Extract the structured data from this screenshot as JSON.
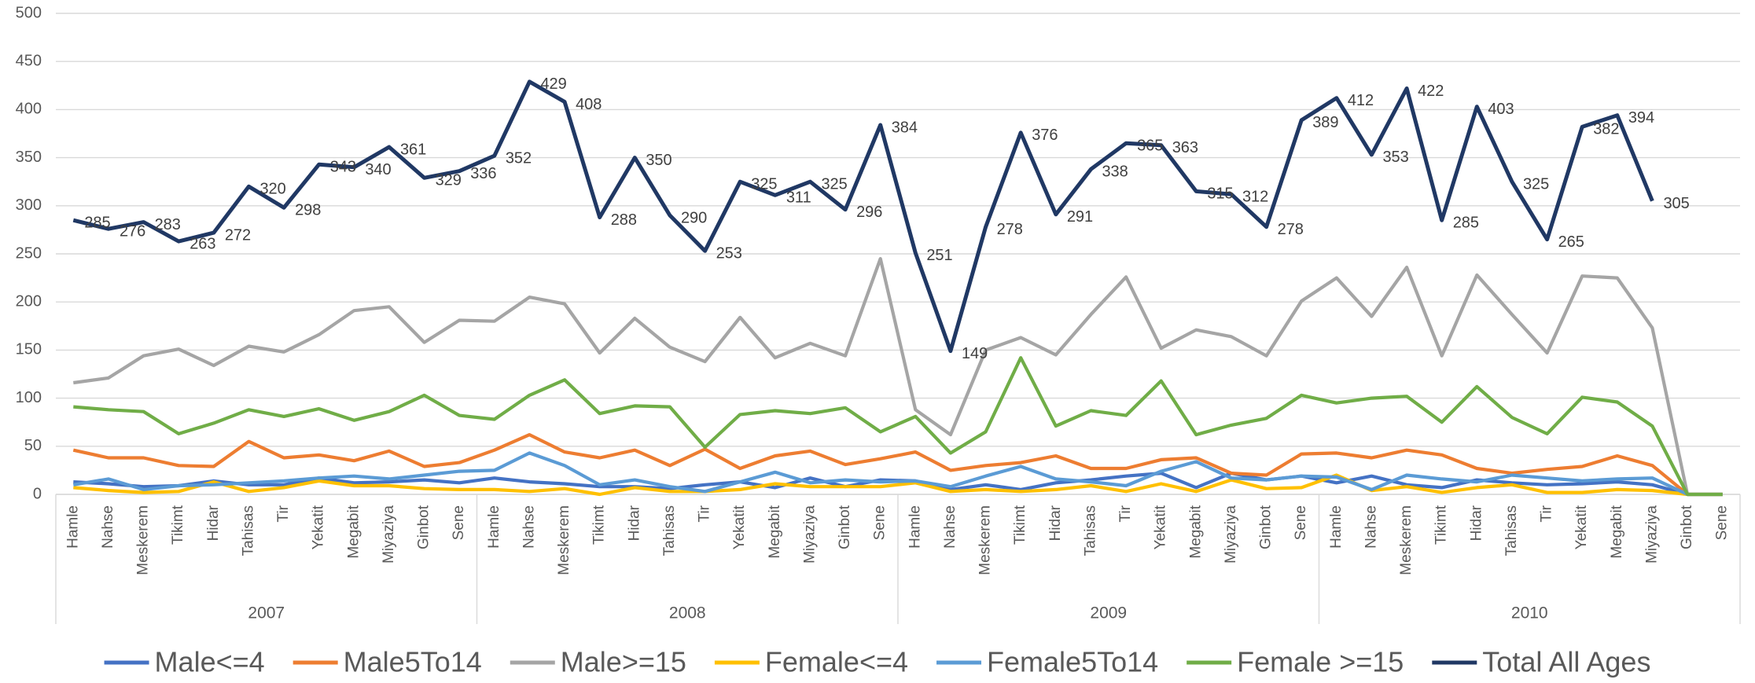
{
  "chart_data": {
    "type": "line",
    "categories": [
      "Hamle",
      "Nahse",
      "Meskerem",
      "Tikimt",
      "Hidar",
      "Tahisas",
      "Tir",
      "Yekatit",
      "Megabit",
      "Miyaziya",
      "Ginbot",
      "Sene",
      "Hamle",
      "Nahse",
      "Meskerem",
      "Tikimt",
      "Hidar",
      "Tahisas",
      "Tir",
      "Yekatit",
      "Megabit",
      "Miyaziya",
      "Ginbot",
      "Sene",
      "Hamle",
      "Nahse",
      "Meskerem",
      "Tikimt",
      "Hidar",
      "Tahisas",
      "Tir",
      "Yekatit",
      "Megabit",
      "Miyaziya",
      "Ginbot",
      "Sene",
      "Hamle",
      "Nahse",
      "Meskerem",
      "Tikimt",
      "Hidar",
      "Tahisas",
      "Tir",
      "Yekatit",
      "Megabit",
      "Miyaziya",
      "Ginbot",
      "Sene"
    ],
    "category_groups": [
      "2007",
      "2008",
      "2009",
      "2010"
    ],
    "series": [
      {
        "name": "Male<=4",
        "color": "#4472c4",
        "values": [
          13,
          11,
          8,
          9,
          14,
          10,
          10,
          17,
          12,
          13,
          15,
          12,
          17,
          13,
          11,
          8,
          8,
          6,
          10,
          13,
          7,
          17,
          8,
          15,
          14,
          5,
          10,
          5,
          12,
          15,
          19,
          22,
          7,
          22,
          15,
          19,
          12,
          19,
          10,
          7,
          15,
          12,
          10,
          11,
          13,
          10,
          0,
          0
        ]
      },
      {
        "name": "Male5To14",
        "color": "#ed7d31",
        "values": [
          46,
          38,
          38,
          30,
          29,
          55,
          38,
          41,
          35,
          45,
          29,
          33,
          46,
          62,
          44,
          38,
          46,
          30,
          47,
          27,
          40,
          45,
          31,
          37,
          44,
          25,
          30,
          33,
          40,
          27,
          27,
          36,
          38,
          22,
          20,
          42,
          43,
          38,
          46,
          41,
          27,
          22,
          26,
          29,
          40,
          30,
          0,
          0
        ]
      },
      {
        "name": "Male>=15",
        "color": "#a5a5a5",
        "values": [
          116,
          121,
          144,
          151,
          134,
          154,
          148,
          166,
          191,
          195,
          158,
          181,
          180,
          205,
          198,
          147,
          183,
          153,
          138,
          184,
          142,
          157,
          144,
          245,
          88,
          62,
          150,
          163,
          145,
          187,
          226,
          152,
          171,
          164,
          144,
          201,
          225,
          185,
          236,
          144,
          228,
          187,
          147,
          227,
          225,
          173,
          0,
          0
        ]
      },
      {
        "name": "Female<=4",
        "color": "#ffc000",
        "values": [
          7,
          4,
          2,
          3,
          13,
          3,
          7,
          14,
          9,
          9,
          6,
          5,
          5,
          3,
          6,
          0,
          7,
          3,
          3,
          5,
          11,
          8,
          8,
          8,
          12,
          3,
          5,
          3,
          5,
          9,
          3,
          11,
          3,
          15,
          6,
          7,
          20,
          4,
          8,
          2,
          7,
          10,
          2,
          2,
          5,
          4,
          0,
          0
        ]
      },
      {
        "name": "Female5To14",
        "color": "#5b9bd5",
        "values": [
          10,
          16,
          5,
          9,
          10,
          12,
          14,
          17,
          19,
          16,
          20,
          24,
          25,
          43,
          30,
          10,
          15,
          8,
          3,
          13,
          23,
          12,
          15,
          13,
          14,
          8,
          19,
          29,
          16,
          13,
          9,
          24,
          34,
          17,
          15,
          19,
          18,
          5,
          20,
          16,
          13,
          20,
          17,
          14,
          16,
          17,
          0,
          0
        ]
      },
      {
        "name": "Female >=15",
        "color": "#70ad47",
        "values": [
          91,
          88,
          86,
          63,
          74,
          88,
          81,
          89,
          77,
          86,
          103,
          82,
          78,
          103,
          119,
          84,
          92,
          91,
          49,
          83,
          87,
          84,
          90,
          65,
          81,
          43,
          65,
          142,
          71,
          87,
          82,
          118,
          62,
          72,
          79,
          103,
          95,
          100,
          102,
          75,
          112,
          80,
          63,
          101,
          96,
          71,
          0,
          0
        ]
      },
      {
        "name": "Total All Ages",
        "color": "#203864",
        "data_labels": true,
        "values": [
          285,
          276,
          283,
          263,
          272,
          320,
          298,
          343,
          340,
          361,
          329,
          336,
          352,
          429,
          408,
          288,
          350,
          290,
          253,
          325,
          311,
          325,
          296,
          384,
          251,
          149,
          278,
          376,
          291,
          338,
          365,
          363,
          315,
          312,
          278,
          389,
          412,
          353,
          422,
          285,
          403,
          325,
          265,
          382,
          394,
          305,
          null,
          null
        ]
      }
    ],
    "ylim": [
      0,
      500
    ],
    "yticks": [
      0,
      50,
      100,
      150,
      200,
      250,
      300,
      350,
      400,
      450,
      500
    ],
    "grid": true,
    "legend": "bottom"
  }
}
